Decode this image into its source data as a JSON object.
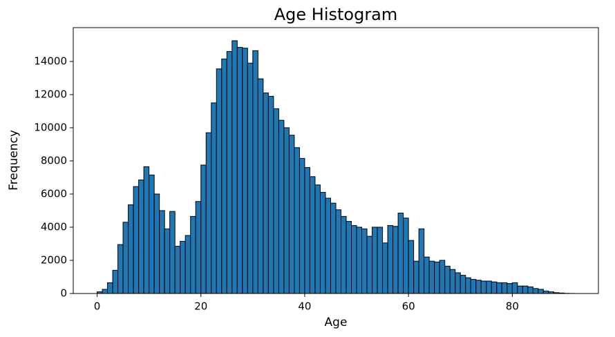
{
  "chart_data": {
    "type": "histogram",
    "title": "Age Histogram",
    "x_label": "Age",
    "y_label": "Frequency",
    "bins": [
      0,
      1,
      2,
      3,
      4,
      5,
      6,
      7,
      8,
      9,
      10,
      11,
      12,
      13,
      14,
      15,
      16,
      17,
      18,
      19,
      20,
      21,
      22,
      23,
      24,
      25,
      26,
      27,
      28,
      29,
      30,
      31,
      32,
      33,
      34,
      35,
      36,
      37,
      38,
      39,
      40,
      41,
      42,
      43,
      44,
      45,
      46,
      47,
      48,
      49,
      50,
      51,
      52,
      53,
      54,
      55,
      56,
      57,
      58,
      59,
      60,
      61,
      62,
      63,
      64,
      65,
      66,
      67,
      68,
      69,
      70,
      71,
      72,
      73,
      74,
      75,
      76,
      77,
      78,
      79,
      80,
      81,
      82,
      83,
      84,
      85,
      86,
      87,
      88,
      89,
      90,
      91,
      92
    ],
    "counts": [
      100,
      250,
      650,
      1400,
      2950,
      4300,
      5350,
      6450,
      6850,
      7650,
      7150,
      6000,
      5000,
      3900,
      4950,
      2850,
      3150,
      3500,
      4650,
      5550,
      7750,
      9700,
      11500,
      13550,
      14150,
      14600,
      15250,
      14850,
      14800,
      13900,
      14650,
      12950,
      12100,
      11900,
      11150,
      10450,
      10000,
      9550,
      8800,
      8150,
      7600,
      7050,
      6550,
      6100,
      5750,
      5450,
      5050,
      4650,
      4350,
      4100,
      4000,
      3900,
      3450,
      4000,
      4000,
      3050,
      4100,
      4050,
      4850,
      4550,
      3200,
      1950,
      3900,
      2200,
      1950,
      1900,
      2000,
      1650,
      1450,
      1250,
      1100,
      950,
      850,
      800,
      750,
      750,
      700,
      650,
      650,
      600,
      650,
      450,
      450,
      400,
      300,
      250,
      150,
      100,
      50,
      30,
      10,
      5
    ],
    "color": "#1f77b4",
    "edgecolor": "#000000",
    "xlim": [
      -4.6,
      96.6
    ],
    "ylim": [
      0,
      16040
    ],
    "xticks": [
      0,
      20,
      40,
      60,
      80
    ],
    "yticks": [
      0,
      2000,
      4000,
      6000,
      8000,
      10000,
      12000,
      14000
    ],
    "grid": false
  }
}
